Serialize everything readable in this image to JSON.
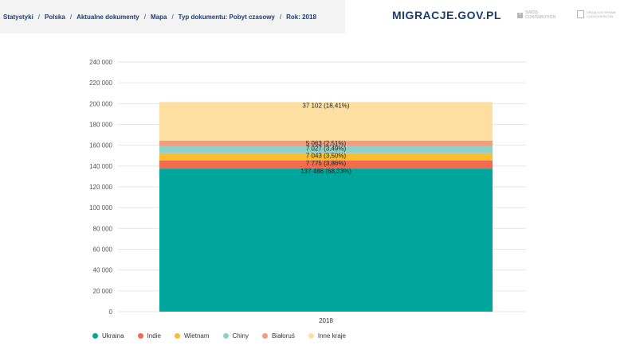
{
  "breadcrumb": {
    "items": [
      "Statystyki",
      "Polska",
      "Aktualne dokumenty",
      "Mapa",
      "Typ dokumentu: Pobyt czasowy",
      "Rok: 2018"
    ]
  },
  "header": {
    "brand": "MIGRACJE.GOV.PL",
    "partner1_line1": "SWISS",
    "partner1_line2": "CONTRIBUTION",
    "partner2_line1": "URZĄD DO SPRAW",
    "partner2_line2": "CUDZOZIEMCÓW"
  },
  "chart_data": {
    "type": "bar",
    "stacked": true,
    "categories": [
      "2018"
    ],
    "ylim": [
      0,
      240000
    ],
    "yticks": [
      "0",
      "20 000",
      "40 000",
      "60 000",
      "80 000",
      "100 000",
      "120 000",
      "140 000",
      "160 000",
      "180 000",
      "200 000",
      "220 000",
      "240 000"
    ],
    "grid": true,
    "legend_position": "bottom-left",
    "series": [
      {
        "name": "Ukraina",
        "values": [
          137486
        ],
        "label": "137 486 (68,23%)",
        "color": "#00a69c"
      },
      {
        "name": "Indie",
        "values": [
          7775
        ],
        "label": "7 775 (3,86%)",
        "color": "#f26b4c"
      },
      {
        "name": "Wietnam",
        "values": [
          7043
        ],
        "label": "7 043 (3,50%)",
        "color": "#fbbd2f"
      },
      {
        "name": "Chiny",
        "values": [
          7027
        ],
        "label": "7 027 (3,49%)",
        "color": "#8fd1c9"
      },
      {
        "name": "Białoruś",
        "values": [
          5063
        ],
        "label": "5 063 (2,51%)",
        "color": "#f59b7e"
      },
      {
        "name": "Inne kraje",
        "values": [
          37102
        ],
        "label": "37 102 (18,41%)",
        "color": "#fddfa1"
      }
    ]
  }
}
